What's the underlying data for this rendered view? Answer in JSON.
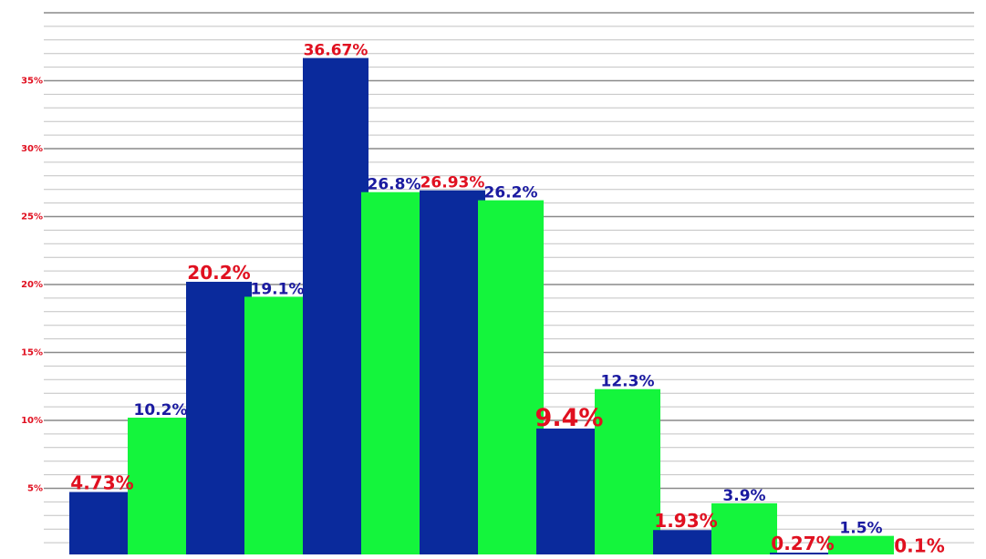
{
  "chart_data": {
    "type": "bar",
    "y_ticks": [
      {
        "value": 5,
        "label": "5%"
      },
      {
        "value": 10,
        "label": "10%"
      },
      {
        "value": 15,
        "label": "15%"
      },
      {
        "value": 20,
        "label": "20%"
      },
      {
        "value": 25,
        "label": "25%"
      },
      {
        "value": 30,
        "label": "30%"
      },
      {
        "value": 35,
        "label": "35%"
      }
    ],
    "ylim": [
      0,
      40
    ],
    "grid": true,
    "legend": "none",
    "colors": {
      "navy_bars": "#0a2a9c",
      "green_bars": "#14f53c",
      "red_labels": "#e01020",
      "blue_labels": "#1a1aa0",
      "tick_labels": "#e01020",
      "major_grid": "#8a8a8a",
      "minor_grid": "#c2c2c2"
    },
    "bars": [
      {
        "value": 4.73,
        "label": "4.73%",
        "color": "navy",
        "label_color": "red",
        "label_size": "medium"
      },
      {
        "value": 10.2,
        "label": "10.2%",
        "color": "green",
        "label_color": "blue",
        "label_size": "small"
      },
      {
        "value": 20.2,
        "label": "20.2%",
        "color": "navy",
        "label_color": "red",
        "label_size": "medium"
      },
      {
        "value": 19.1,
        "label": "19.1%",
        "color": "green",
        "label_color": "blue",
        "label_size": "small"
      },
      {
        "value": 36.67,
        "label": "36.67%",
        "color": "navy",
        "label_color": "red",
        "label_size": "small"
      },
      {
        "value": 26.8,
        "label": "26.8%",
        "color": "green",
        "label_color": "blue",
        "label_size": "small"
      },
      {
        "value": 26.93,
        "label": "26.93%",
        "color": "navy",
        "label_color": "red",
        "label_size": "small"
      },
      {
        "value": 26.2,
        "label": "26.2%",
        "color": "green",
        "label_color": "blue",
        "label_size": "small"
      },
      {
        "value": 9.4,
        "label": "9.4%",
        "color": "navy",
        "label_color": "red",
        "label_size": "large"
      },
      {
        "value": 12.3,
        "label": "12.3%",
        "color": "green",
        "label_color": "blue",
        "label_size": "small"
      },
      {
        "value": 1.93,
        "label": "1.93%",
        "color": "navy",
        "label_color": "red",
        "label_size": "medium"
      },
      {
        "value": 3.9,
        "label": "3.9%",
        "color": "green",
        "label_color": "blue",
        "label_size": "small"
      },
      {
        "value": 0.27,
        "label": "0.27%",
        "color": "navy",
        "label_color": "red",
        "label_size": "medium"
      },
      {
        "value": 1.5,
        "label": "1.5%",
        "color": "green",
        "label_color": "blue",
        "label_size": "small"
      },
      {
        "value": 0.1,
        "label": "0.1%",
        "color": "navy",
        "label_color": "red",
        "label_size": "medium"
      }
    ]
  }
}
